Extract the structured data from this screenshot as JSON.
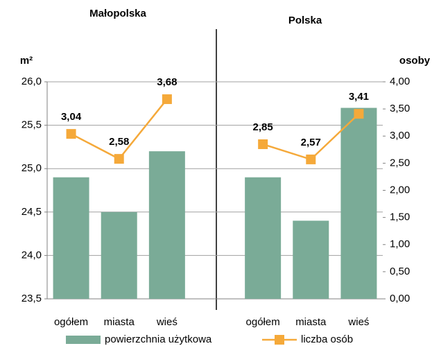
{
  "chart_data": {
    "type": "bar_line",
    "annotations": [
      "Małopolska",
      "Polska"
    ],
    "y_label": "m²",
    "y2_label": "osoby",
    "categories": [
      "ogółem",
      "miasta",
      "wieś",
      null,
      "ogółem",
      "miasta",
      "wieś"
    ],
    "series": [
      {
        "name": "powierzchnia użytkowa",
        "type": "bar",
        "color": "#7aab97",
        "values": [
          24.9,
          24.5,
          25.2,
          null,
          24.9,
          24.4,
          25.7
        ]
      },
      {
        "name": "liczba osób",
        "type": "line",
        "axis": "y2",
        "color": "#f5a93a",
        "values": [
          3.04,
          2.58,
          3.68,
          null,
          2.85,
          2.57,
          3.41
        ],
        "value_labels": [
          "3,04",
          "2,58",
          "3,68",
          null,
          "2,85",
          "2,57",
          "3,41"
        ]
      }
    ],
    "ylim": [
      23.5,
      26.0
    ],
    "yticks": [
      {
        "value": 23.5,
        "label": "23,5"
      },
      {
        "value": 24,
        "label": "24,0"
      },
      {
        "value": 24.5,
        "label": "24,5"
      },
      {
        "value": 25,
        "label": "25,0"
      },
      {
        "value": 25.5,
        "label": "25,5"
      },
      {
        "value": 26,
        "label": "26,0"
      }
    ],
    "y2lim": [
      0,
      4
    ],
    "y2ticks": [
      {
        "value": 0,
        "label": "0,00"
      },
      {
        "value": 0.5,
        "label": "0,50"
      },
      {
        "value": 1,
        "label": "1,00"
      },
      {
        "value": 1.5,
        "label": "1,50"
      },
      {
        "value": 2,
        "label": "2,00"
      },
      {
        "value": 2.5,
        "label": "2,50"
      },
      {
        "value": 3,
        "label": "3,00"
      },
      {
        "value": 3.5,
        "label": "3,50"
      },
      {
        "value": 4,
        "label": "4,00"
      }
    ],
    "grid": true
  }
}
